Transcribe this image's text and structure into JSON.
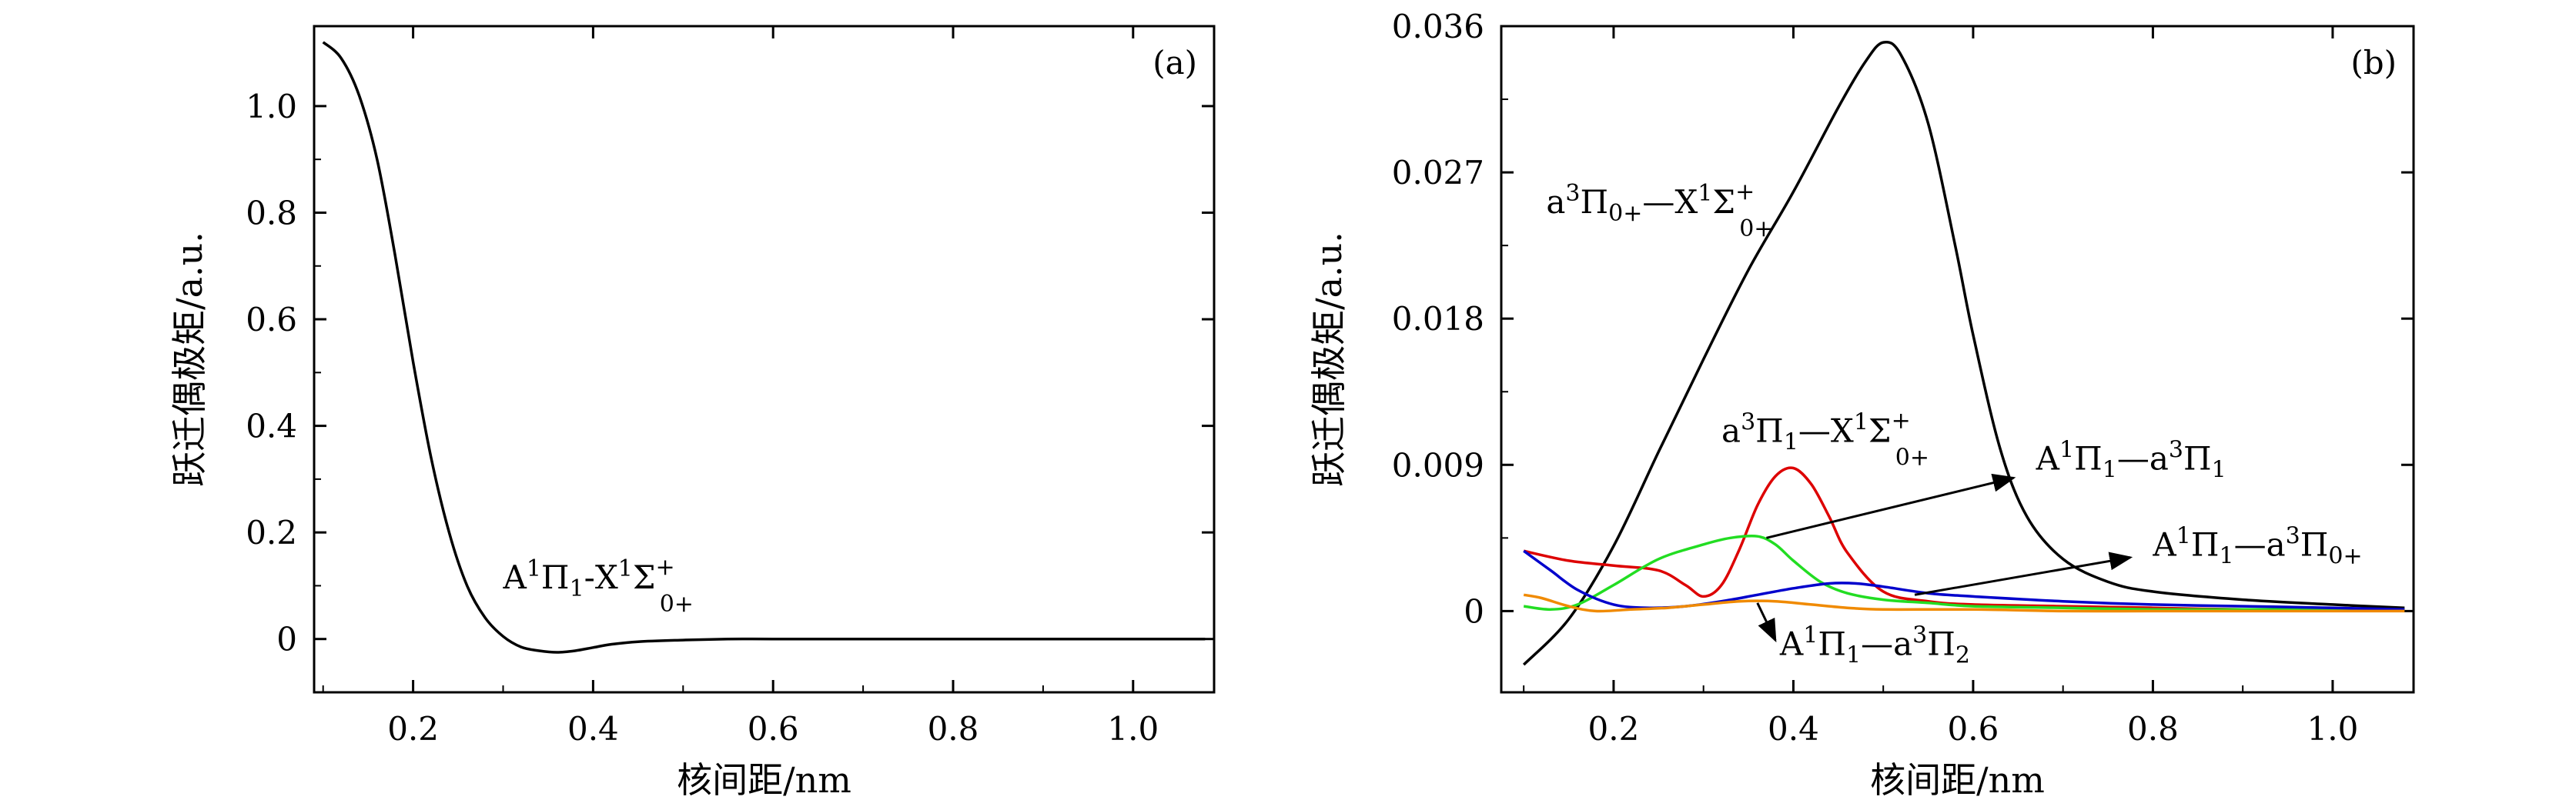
{
  "chart_data": [
    {
      "type": "line",
      "panel_label": "(a)",
      "xlabel": "核间距/nm",
      "ylabel": "跃迁偶极矩/a.u.",
      "xlim": [
        0.09,
        1.09
      ],
      "ylim": [
        -0.1,
        1.15
      ],
      "xticks": [
        0.2,
        0.4,
        0.6,
        0.8,
        1.0
      ],
      "xtick_labels": [
        "0.2",
        "0.4",
        "0.6",
        "0.8",
        "1.0"
      ],
      "yticks": [
        0,
        0.2,
        0.4,
        0.6,
        0.8,
        1.0
      ],
      "ytick_labels": [
        "0",
        "0.2",
        "0.4",
        "0.6",
        "0.8",
        "1.0"
      ],
      "series": [
        {
          "label": {
            "base": "A",
            "sup1": "1",
            "mid": "Π",
            "sub1": "1",
            "rest": "-X",
            "sup2": "1",
            "tail": "Σ",
            "sup3": "+",
            "sub3": "0+"
          },
          "color": "#000000",
          "x": [
            0.1,
            0.12,
            0.14,
            0.16,
            0.18,
            0.2,
            0.22,
            0.24,
            0.26,
            0.28,
            0.3,
            0.32,
            0.34,
            0.36,
            0.38,
            0.4,
            0.42,
            0.45,
            0.5,
            0.55,
            0.6,
            0.7,
            0.8,
            0.9,
            1.0,
            1.08
          ],
          "y": [
            1.12,
            1.09,
            1.02,
            0.9,
            0.72,
            0.52,
            0.34,
            0.2,
            0.1,
            0.04,
            0.005,
            -0.015,
            -0.022,
            -0.025,
            -0.022,
            -0.016,
            -0.01,
            -0.005,
            -0.002,
            0.0,
            0.0,
            0.0,
            0.0,
            0.0,
            0.0,
            0.0
          ]
        }
      ],
      "annotations": [
        {
          "text": {
            "base": "A",
            "sup1": "1",
            "mid": "Π",
            "sub1": "1",
            "rest": "-X",
            "sup2": "1",
            "tail": "Σ",
            "sup3": "+",
            "sub3": "0+"
          },
          "x": 0.3,
          "y": 0.095
        }
      ]
    },
    {
      "type": "line",
      "panel_label": "(b)",
      "xlabel": "核间距/nm",
      "ylabel": "跃迁偶极矩/a.u.",
      "xlim": [
        0.075,
        1.09
      ],
      "ylim": [
        -0.005,
        0.036
      ],
      "xticks": [
        0.2,
        0.4,
        0.6,
        0.8,
        1.0
      ],
      "xtick_labels": [
        "0.2",
        "0.4",
        "0.6",
        "0.8",
        "1.0"
      ],
      "yticks": [
        0,
        0.009,
        0.018,
        0.027,
        0.036
      ],
      "ytick_labels": [
        "0",
        "0.009",
        "0.018",
        "0.027",
        "0.036"
      ],
      "series": [
        {
          "label": {
            "base": "a",
            "sup1": "3",
            "mid": "Π",
            "sub1": "0+",
            "rest": "—X",
            "sup2": "1",
            "tail": "Σ",
            "sup3": "+",
            "sub3": "0+"
          },
          "color": "#000000",
          "x": [
            0.1,
            0.15,
            0.2,
            0.25,
            0.3,
            0.35,
            0.4,
            0.45,
            0.48,
            0.5,
            0.52,
            0.55,
            0.58,
            0.6,
            0.63,
            0.66,
            0.7,
            0.75,
            0.8,
            0.9,
            1.0,
            1.08
          ],
          "y": [
            -0.0033,
            -0.0005,
            0.004,
            0.0098,
            0.0155,
            0.021,
            0.0258,
            0.031,
            0.0338,
            0.035,
            0.0342,
            0.03,
            0.0225,
            0.017,
            0.01,
            0.0058,
            0.0032,
            0.0018,
            0.0012,
            0.0007,
            0.0004,
            0.0002
          ]
        },
        {
          "label": {
            "base": "a",
            "sup1": "3",
            "mid": "Π",
            "sub1": "1",
            "rest": "—X",
            "sup2": "1",
            "tail": "Σ",
            "sup3": "+",
            "sub3": "0+"
          },
          "color": "#dd0000",
          "x": [
            0.1,
            0.15,
            0.2,
            0.25,
            0.28,
            0.3,
            0.32,
            0.34,
            0.36,
            0.38,
            0.4,
            0.42,
            0.44,
            0.46,
            0.5,
            0.55,
            0.6,
            0.7,
            0.8,
            0.9,
            1.0,
            1.08
          ],
          "y": [
            0.0037,
            0.0031,
            0.0028,
            0.0025,
            0.0016,
            0.0009,
            0.0016,
            0.0038,
            0.0065,
            0.0083,
            0.0088,
            0.0078,
            0.0058,
            0.0036,
            0.0012,
            0.0006,
            0.0004,
            0.0003,
            0.0002,
            0.0001,
            0.0001,
            0.0001
          ]
        },
        {
          "label": {
            "base": "A",
            "sup1": "1",
            "mid": "Π",
            "sub1": "1",
            "rest": "—a",
            "sup2": "3",
            "tail": "Π",
            "sup3": "",
            "sub3": "1"
          },
          "color": "#22dd22",
          "x": [
            0.1,
            0.13,
            0.16,
            0.2,
            0.25,
            0.3,
            0.33,
            0.36,
            0.38,
            0.4,
            0.43,
            0.46,
            0.5,
            0.55,
            0.6,
            0.7,
            0.8,
            0.9,
            1.0,
            1.08
          ],
          "y": [
            0.0003,
            0.0001,
            0.0004,
            0.0016,
            0.0032,
            0.0041,
            0.0045,
            0.0046,
            0.0041,
            0.0031,
            0.0018,
            0.0011,
            0.0007,
            0.0005,
            0.0003,
            0.0002,
            0.0001,
            0.0001,
            0.0001,
            0.0001
          ]
        },
        {
          "label": {
            "base": "A",
            "sup1": "1",
            "mid": "Π",
            "sub1": "1",
            "rest": "—a",
            "sup2": "3",
            "tail": "Π",
            "sup3": "",
            "sub3": "0+"
          },
          "color": "#0000cc",
          "x": [
            0.1,
            0.13,
            0.16,
            0.2,
            0.24,
            0.28,
            0.32,
            0.36,
            0.4,
            0.44,
            0.47,
            0.5,
            0.55,
            0.6,
            0.7,
            0.8,
            0.9,
            1.0,
            1.08
          ],
          "y": [
            0.0037,
            0.0025,
            0.0013,
            0.0004,
            0.0002,
            0.0003,
            0.0006,
            0.001,
            0.0014,
            0.0017,
            0.0017,
            0.0015,
            0.0011,
            0.0009,
            0.0006,
            0.0004,
            0.0003,
            0.0002,
            0.0001
          ]
        },
        {
          "label": {
            "base": "A",
            "sup1": "1",
            "mid": "Π",
            "sub1": "1",
            "rest": "—a",
            "sup2": "3",
            "tail": "Π",
            "sup3": "",
            "sub3": "2"
          },
          "color": "#f08a00",
          "x": [
            0.1,
            0.12,
            0.15,
            0.18,
            0.22,
            0.26,
            0.3,
            0.34,
            0.38,
            0.42,
            0.46,
            0.5,
            0.6,
            0.7,
            0.8,
            0.9,
            1.0,
            1.08
          ],
          "y": [
            0.001,
            0.0008,
            0.0003,
            0.0,
            0.0001,
            0.0002,
            0.0004,
            0.0006,
            0.0006,
            0.0004,
            0.0002,
            0.0001,
            0.0001,
            0.0,
            0.0,
            0.0,
            0.0,
            0.0
          ]
        }
      ],
      "annotations": [
        {
          "text": {
            "base": "a",
            "sup1": "3",
            "mid": "Π",
            "sub1": "0+",
            "rest": "—X",
            "sup2": "1",
            "tail": "Σ",
            "sup3": "+",
            "sub3": "0+"
          },
          "x": 0.125,
          "y": 0.0245
        },
        {
          "text": {
            "base": "a",
            "sup1": "3",
            "mid": "Π",
            "sub1": "1",
            "rest": "—X",
            "sup2": "1",
            "tail": "Σ",
            "sup3": "+",
            "sub3": "0+"
          },
          "x": 0.32,
          "y": 0.0104
        },
        {
          "text": {
            "base": "A",
            "sup1": "1",
            "mid": "Π",
            "sub1": "1",
            "rest": "—a",
            "sup2": "3",
            "tail": "Π",
            "sup3": "",
            "sub3": "1"
          },
          "x": 0.67,
          "y": 0.0087,
          "arrow_from": [
            0.37,
            0.0045
          ],
          "arrow_to": [
            0.645,
            0.0082
          ]
        },
        {
          "text": {
            "base": "A",
            "sup1": "1",
            "mid": "Π",
            "sub1": "1",
            "rest": "—a",
            "sup2": "3",
            "tail": "Π",
            "sup3": "",
            "sub3": "0+"
          },
          "x": 0.8,
          "y": 0.0034,
          "arrow_from": [
            0.535,
            0.001
          ],
          "arrow_to": [
            0.775,
            0.0033
          ]
        },
        {
          "text": {
            "base": "A",
            "sup1": "1",
            "mid": "Π",
            "sub1": "1",
            "rest": "—a",
            "sup2": "3",
            "tail": "Π",
            "sup3": "",
            "sub3": "2"
          },
          "x": 0.385,
          "y": -0.0027,
          "arrow_from": [
            0.36,
            0.0005
          ],
          "arrow_to": [
            0.38,
            -0.0018
          ]
        }
      ]
    }
  ]
}
